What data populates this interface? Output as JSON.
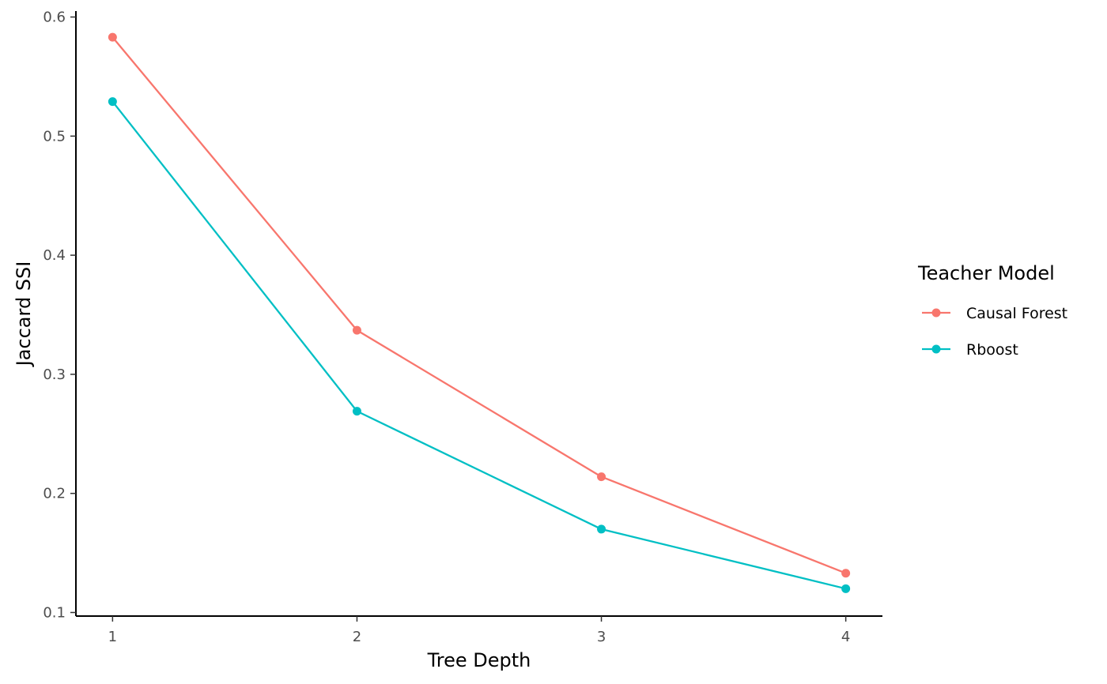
{
  "chart_data": {
    "type": "line",
    "xlabel": "Tree Depth",
    "ylabel": "Jaccard SSI",
    "x": [
      1,
      2,
      3,
      4
    ],
    "xlim": [
      0.85,
      4.15
    ],
    "ylim": [
      0.097,
      0.605
    ],
    "x_ticks": [
      1,
      2,
      3,
      4
    ],
    "y_ticks": [
      0.1,
      0.2,
      0.3,
      0.4,
      0.5,
      0.6
    ],
    "grid": false,
    "legend": {
      "title": "Teacher Model",
      "placement": "right"
    },
    "series": [
      {
        "name": "Causal Forest",
        "color": "#F8766D",
        "values": [
          0.583,
          0.337,
          0.214,
          0.133
        ]
      },
      {
        "name": "Rboost",
        "color": "#00BFC4",
        "values": [
          0.529,
          0.269,
          0.17,
          0.12
        ]
      }
    ]
  }
}
